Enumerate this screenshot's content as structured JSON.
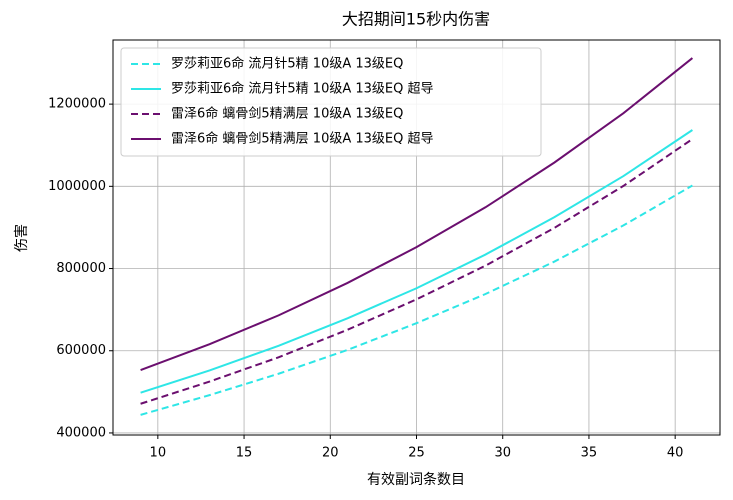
{
  "chart_data": {
    "type": "line",
    "title": "大招期间15秒内伤害",
    "x_label": "有效副词条数目",
    "y_label": "伤害",
    "x": [
      9,
      13,
      17,
      21,
      25,
      29,
      33,
      37,
      41
    ],
    "series": [
      {
        "name": "罗莎莉亚6命 流月针5精 10级A 13级EQ",
        "color": "#2ee6e6",
        "style": "dashed",
        "values": [
          444000,
          492000,
          544000,
          602000,
          667000,
          738000,
          817000,
          905000,
          1002000
        ]
      },
      {
        "name": "罗莎莉亚6命 流月针5精 10级A 13级EQ 超导",
        "color": "#2ee6e6",
        "style": "solid",
        "values": [
          498000,
          552000,
          612000,
          679000,
          752000,
          834000,
          925000,
          1025000,
          1137000
        ]
      },
      {
        "name": "雷泽6命 螭骨剑5精满层 10级A 13级EQ",
        "color": "#6b0f6f",
        "style": "dashed",
        "values": [
          471000,
          525000,
          584000,
          651000,
          725000,
          807000,
          899000,
          1001000,
          1115000
        ]
      },
      {
        "name": "雷泽6命 螭骨剑5精满层 10级A 13级EQ 超导",
        "color": "#6b0f6f",
        "style": "solid",
        "values": [
          553000,
          616000,
          686000,
          765000,
          852000,
          949000,
          1058000,
          1178000,
          1312000
        ]
      }
    ],
    "xlim": [
      7.4,
      42.6
    ],
    "xticks": [
      10,
      15,
      20,
      25,
      30,
      35,
      40
    ],
    "ylim": [
      395000,
      1356000
    ],
    "yticks": [
      400000,
      600000,
      800000,
      1000000,
      1200000
    ],
    "grid": true,
    "legend": "upper-left"
  }
}
